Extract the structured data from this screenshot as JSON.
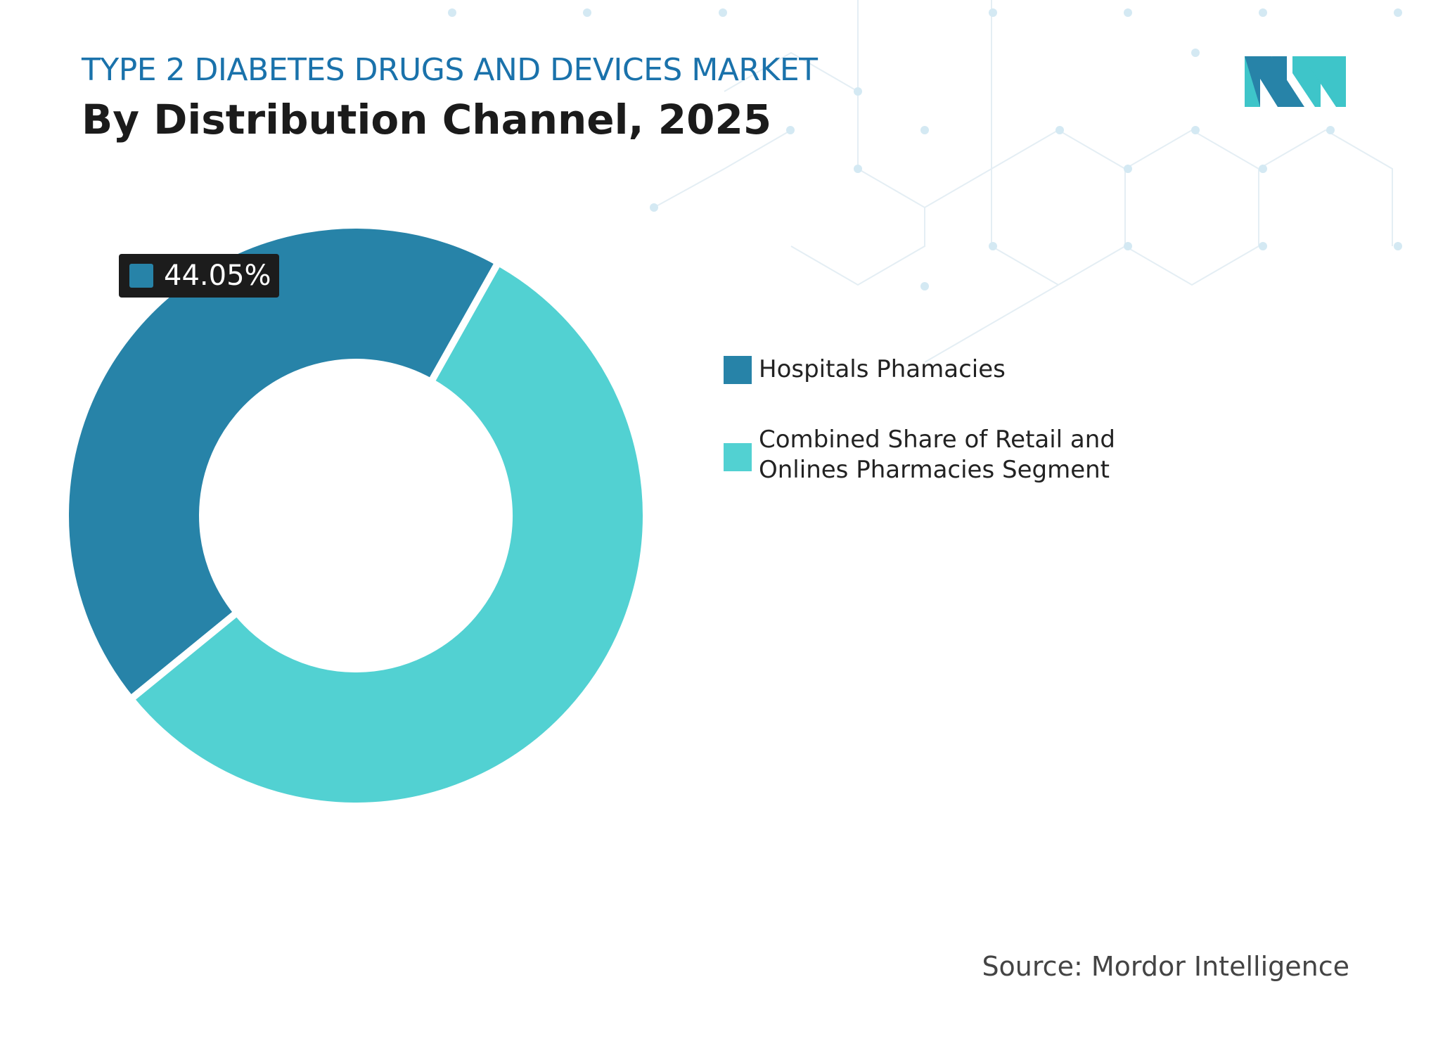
{
  "chart_data": {
    "type": "donut",
    "title": "TYPE 2 DIABETES DRUGS AND DEVICES MARKET",
    "subtitle": "By Distribution Channel, 2025",
    "categories": [
      "Hospitals Phamacies",
      "Combined Share of Retail and Onlines Pharmacies Segment"
    ],
    "values": [
      44.05,
      55.95
    ],
    "value_labels": [
      "44.05%",
      null
    ],
    "colors": [
      "#2783a8",
      "#52d1d2"
    ],
    "source": "Source: Mordor Intelligence"
  }
}
